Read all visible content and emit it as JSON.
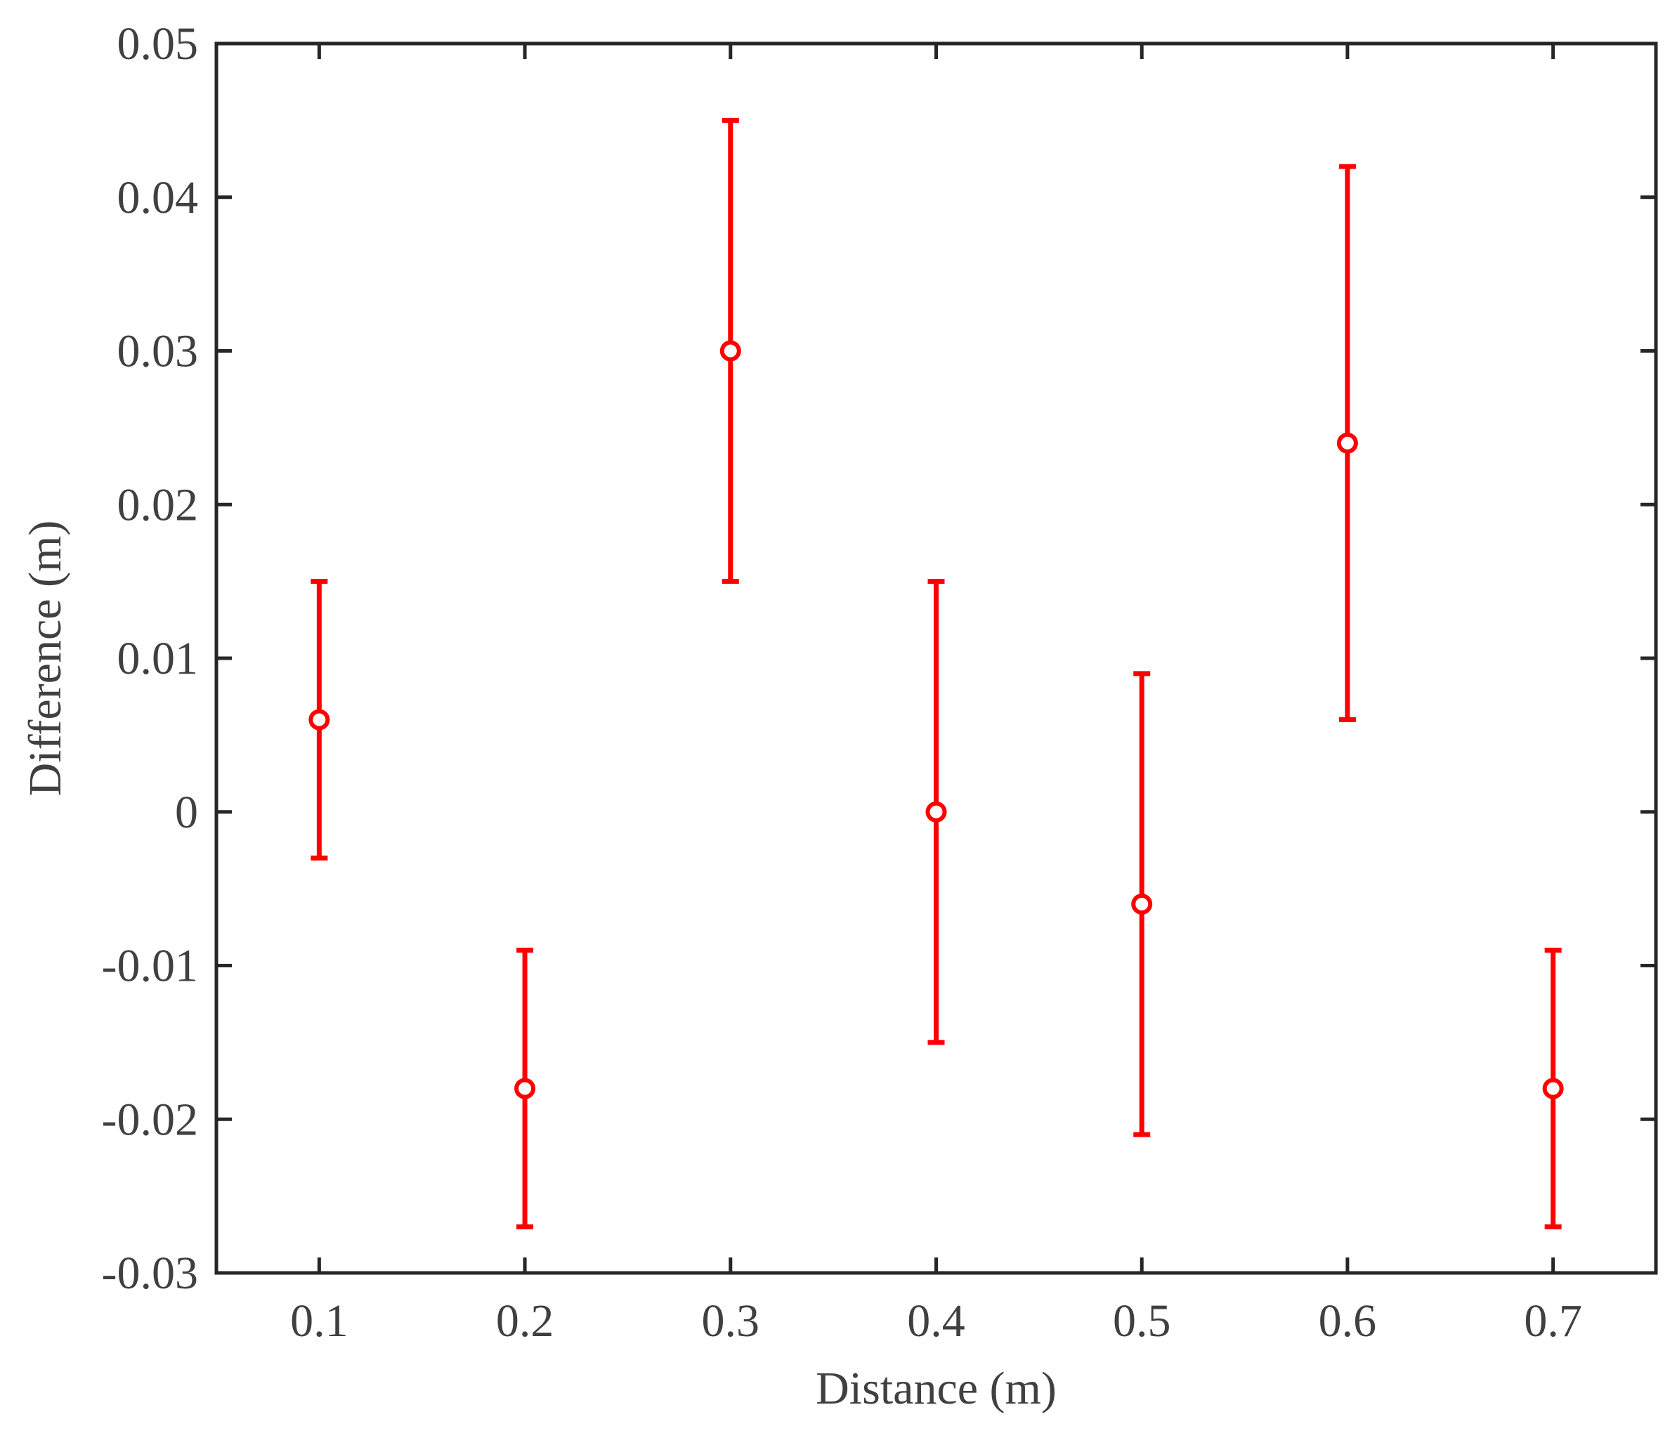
{
  "chart_data": {
    "type": "scatter",
    "title": "",
    "xlabel": "Distance (m)",
    "ylabel": "Difference (m)",
    "xlim": [
      0.05,
      0.75
    ],
    "ylim": [
      -0.03,
      0.05
    ],
    "xticks": [
      0.1,
      0.2,
      0.3,
      0.4,
      0.5,
      0.6,
      0.7
    ],
    "xtick_labels": [
      "0.1",
      "0.2",
      "0.3",
      "0.4",
      "0.5",
      "0.6",
      "0.7"
    ],
    "yticks": [
      -0.03,
      -0.02,
      -0.01,
      0,
      0.01,
      0.02,
      0.03,
      0.04,
      0.05
    ],
    "ytick_labels": [
      "-0.03",
      "-0.02",
      "-0.01",
      "0",
      "0.01",
      "0.02",
      "0.03",
      "0.04",
      "0.05"
    ],
    "grid": false,
    "legend": "none",
    "marker_color": "#ff0000",
    "axis_color": "#262626",
    "series": [
      {
        "x": [
          0.1,
          0.2,
          0.3,
          0.4,
          0.5,
          0.6,
          0.7
        ],
        "y": [
          0.006,
          -0.018,
          0.03,
          0.0,
          -0.006,
          0.024,
          -0.018
        ],
        "y_lower": [
          -0.003,
          -0.027,
          0.015,
          -0.015,
          -0.021,
          0.006,
          -0.027
        ],
        "y_upper": [
          0.015,
          -0.009,
          0.045,
          0.015,
          0.009,
          0.042,
          -0.009
        ]
      }
    ]
  }
}
